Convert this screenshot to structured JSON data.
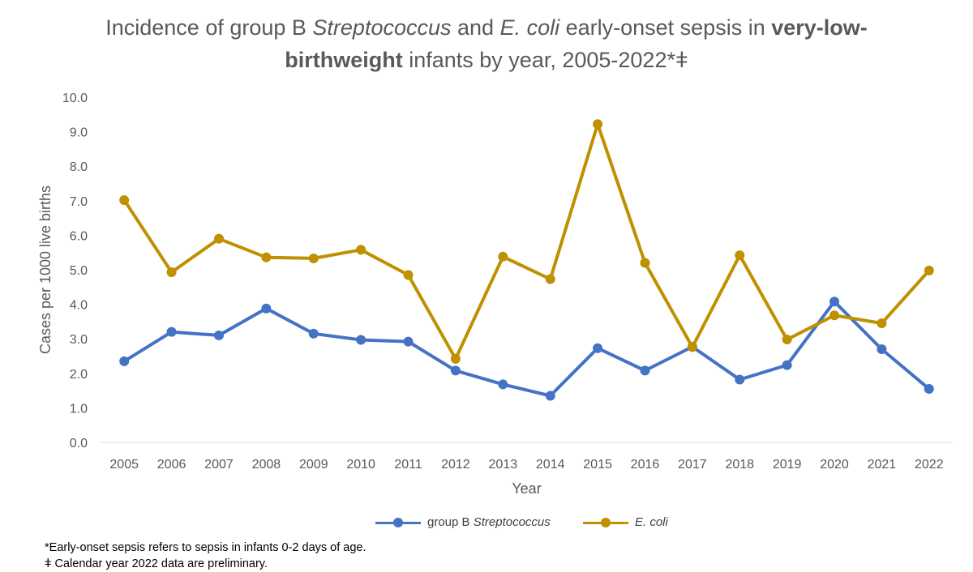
{
  "title": {
    "part1": "Incidence of group B ",
    "part2": "Streptococcus",
    "part3": " and ",
    "part4": "E. coli",
    "part5": " early-onset sepsis in ",
    "part6": "very-low-birthweight",
    "part7": " infants by year, 2005-2022*ǂ"
  },
  "footnotes": {
    "note1": "*Early-onset sepsis refers to sepsis in infants 0-2 days of age.",
    "note2": "ǂ Calendar year 2022 data are preliminary."
  },
  "legend": {
    "gbs_prefix": "group B ",
    "gbs_italic": "Streptococcus",
    "ecoli": "E. coli"
  },
  "colors": {
    "gbs": "#4472C4",
    "ecoli": "#BF9000",
    "grid": "#D9D9D9",
    "text": "#595959"
  },
  "chart_data": {
    "type": "line",
    "title": "Incidence of group B Streptococcus and E. coli early-onset sepsis in very-low-birthweight infants by year, 2005-2022*ǂ",
    "xlabel": "Year",
    "ylabel": "Cases per 1000 live births",
    "ylim": [
      0,
      10
    ],
    "y_ticks": [
      "0.0",
      "1.0",
      "2.0",
      "3.0",
      "4.0",
      "5.0",
      "6.0",
      "7.0",
      "8.0",
      "9.0",
      "10.0"
    ],
    "grid": false,
    "legend_position": "bottom",
    "categories": [
      "2005",
      "2006",
      "2007",
      "2008",
      "2009",
      "2010",
      "2011",
      "2012",
      "2013",
      "2014",
      "2015",
      "2016",
      "2017",
      "2018",
      "2019",
      "2020",
      "2021",
      "2022"
    ],
    "series": [
      {
        "name": "group B Streptococcus",
        "values": [
          2.35,
          3.2,
          3.1,
          3.88,
          3.15,
          2.97,
          2.92,
          2.08,
          1.68,
          1.35,
          2.73,
          2.08,
          2.77,
          1.82,
          2.24,
          4.08,
          2.7,
          1.55
        ]
      },
      {
        "name": "E. coli",
        "values": [
          7.02,
          4.93,
          5.9,
          5.36,
          5.33,
          5.58,
          4.85,
          2.42,
          5.38,
          4.73,
          9.22,
          5.2,
          2.76,
          5.42,
          2.98,
          3.68,
          3.45,
          4.98
        ]
      }
    ]
  }
}
